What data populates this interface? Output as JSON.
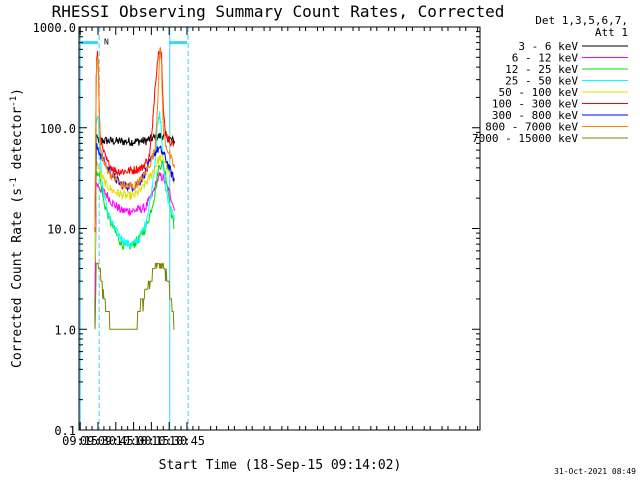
{
  "chart_data": {
    "type": "line",
    "title": "RHESSI Observing Summary Count Rates, Corrected",
    "xlabel": "Start Time (18-Sep-15 09:14:02)",
    "ylabel_prefix": "Corrected Count Rate (s",
    "ylabel_mid": " detector",
    "ylabel_suffix": ")",
    "ylabel_exp": "-1",
    "yscale": "log",
    "ylim": [
      0.1,
      1000
    ],
    "xlim_minutes": [
      554,
      892
    ],
    "x_ticks": [
      {
        "minute": 555,
        "label": "09:15"
      },
      {
        "minute": 570,
        "label": "09:30"
      },
      {
        "minute": 585,
        "label": "09:45"
      },
      {
        "minute": 600,
        "label": "10:00"
      },
      {
        "minute": 615,
        "label": "10:15"
      },
      {
        "minute": 630,
        "label": "10:30"
      },
      {
        "minute": 645,
        "label": "10:45"
      }
    ],
    "y_ticks": [
      {
        "value": 1000,
        "label": "1000.0"
      },
      {
        "value": 100,
        "label": "100.0"
      },
      {
        "value": 10,
        "label": "10.0"
      },
      {
        "value": 1,
        "label": "1.0"
      },
      {
        "value": 0.1,
        "label": "0.1"
      }
    ],
    "legend_header": [
      "Det 1,3,5,6,7,",
      "Att 1"
    ],
    "series": [
      {
        "name": "3 - 6 keV",
        "color": "#000000",
        "x": [
          567.5,
          568.5,
          570.5,
          573,
          580,
          590,
          600,
          610,
          618,
          625,
          630,
          633.5,
          634.5
        ],
        "y": [
          1,
          78,
          76,
          75,
          74,
          73,
          73,
          74,
          80,
          84,
          78,
          74,
          74
        ]
      },
      {
        "name": "6 - 12 keV",
        "color": "#ff00ff",
        "x": [
          567.5,
          568.5,
          570,
          573,
          577,
          582,
          590,
          600,
          610,
          616,
          620,
          622,
          625,
          628,
          632,
          634.5
        ],
        "y": [
          2,
          28,
          27,
          24,
          22,
          18,
          15,
          15,
          16,
          22,
          30,
          33,
          32,
          26,
          20,
          15
        ]
      },
      {
        "name": "12 - 25 keV",
        "color": "#00e000",
        "x": [
          567.5,
          568.5,
          570,
          572,
          575,
          580,
          585,
          590,
          595,
          600,
          605,
          610,
          614,
          618,
          621,
          624,
          627,
          630,
          632,
          634.5
        ],
        "y": [
          5,
          32,
          38,
          30,
          18,
          12,
          9,
          7,
          6.5,
          7,
          8,
          10,
          14,
          22,
          40,
          45,
          35,
          20,
          14,
          10
        ]
      },
      {
        "name": "25 - 50 keV",
        "color": "#00ffff",
        "x": [
          567.5,
          568.5,
          569.5,
          570.5,
          572,
          574,
          578,
          582,
          586,
          590,
          595,
          600,
          605,
          610,
          615,
          618,
          620,
          622,
          623,
          625,
          627,
          630,
          632,
          634.5
        ],
        "y": [
          5,
          100,
          130,
          110,
          50,
          25,
          15,
          11,
          9,
          8,
          7,
          7,
          8,
          11,
          22,
          45,
          100,
          135,
          110,
          45,
          25,
          18,
          15,
          12
        ]
      },
      {
        "name": "50 - 100 keV",
        "color": "#e0e000",
        "x": [
          567.5,
          568.5,
          570,
          573,
          577,
          582,
          588,
          594,
          600,
          606,
          612,
          618,
          621,
          624,
          627,
          630,
          634.5
        ],
        "y": [
          5,
          45,
          42,
          33,
          27,
          24,
          22,
          21,
          21,
          24,
          30,
          40,
          48,
          52,
          45,
          35,
          30
        ]
      },
      {
        "name": "100 - 300 keV",
        "color": "#ff0000",
        "x": [
          567.5,
          568.5,
          569,
          569.5,
          570,
          570.5,
          571,
          572,
          574,
          578,
          585,
          593,
          600,
          607,
          613,
          616,
          618,
          620,
          621.5,
          622.5,
          623.5,
          625,
          627,
          630,
          634.5
        ],
        "y": [
          10,
          300,
          480,
          560,
          480,
          300,
          150,
          80,
          60,
          45,
          37,
          37,
          38,
          40,
          50,
          100,
          250,
          450,
          600,
          680,
          550,
          150,
          90,
          75,
          70
        ]
      },
      {
        "name": "300 - 800 keV",
        "color": "#0000ff",
        "x": [
          567.5,
          568.5,
          570,
          573,
          577,
          582,
          590,
          600,
          606,
          612,
          617,
          621,
          624,
          627,
          630,
          634.5
        ],
        "y": [
          10,
          65,
          62,
          52,
          42,
          34,
          27,
          26,
          30,
          40,
          55,
          62,
          58,
          50,
          40,
          30
        ]
      },
      {
        "name": "800 - 7000 keV",
        "color": "#ff8000",
        "x": [
          567.5,
          568.5,
          569,
          569.5,
          570,
          570.5,
          571,
          572,
          575,
          580,
          590,
          600,
          608,
          614,
          618,
          620,
          621.5,
          622.5,
          623.5,
          625,
          627,
          630,
          634.5
        ],
        "y": [
          10,
          280,
          450,
          520,
          460,
          300,
          150,
          60,
          45,
          35,
          27,
          26,
          32,
          45,
          60,
          150,
          400,
          600,
          450,
          100,
          70,
          55,
          40
        ]
      },
      {
        "name": "7000 - 15000 keV",
        "color": "#808000",
        "x": [
          567.5,
          568.5,
          571,
          573,
          575,
          577,
          580,
          582,
          585,
          590,
          595,
          600,
          604,
          608,
          611,
          614,
          617,
          620,
          624,
          627,
          629,
          631,
          632.5,
          634.5
        ],
        "y": [
          1,
          4.5,
          4.5,
          3,
          2,
          1.5,
          1.2,
          1,
          1,
          1,
          1,
          1,
          1.5,
          2,
          2.5,
          3,
          4,
          4.5,
          4.5,
          4,
          3,
          2,
          1.5,
          1
        ]
      }
    ],
    "annotations": {
      "night_marker_label": "N",
      "attenuator_bars": [
        [
          555,
          570
        ],
        [
          630,
          645
        ]
      ],
      "vertical_lines": [
        {
          "minute": 555,
          "style": "solid"
        },
        {
          "minute": 571,
          "style": "dashed"
        },
        {
          "minute": 630.5,
          "style": "solid"
        },
        {
          "minute": 646,
          "style": "dashed"
        }
      ]
    },
    "grid": false,
    "legend_position": "right"
  },
  "timestamp": "31-Oct-2021 08:49"
}
